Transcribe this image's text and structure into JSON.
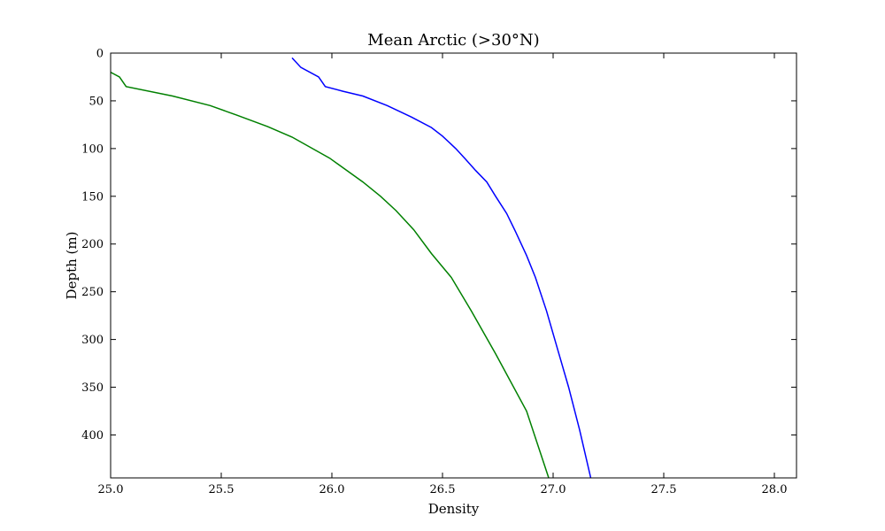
{
  "chart_data": {
    "type": "line",
    "title": "Mean Arctic (>30°N)",
    "xlabel": "Density",
    "ylabel": "Depth (m)",
    "xlim": [
      25.0,
      28.1
    ],
    "ylim": [
      445,
      0
    ],
    "y_inverted": true,
    "xticks": [
      "25.0",
      "25.5",
      "26.0",
      "26.5",
      "27.0",
      "27.5",
      "28.0"
    ],
    "yticks": [
      "0",
      "50",
      "100",
      "150",
      "200",
      "250",
      "300",
      "350",
      "400"
    ],
    "grid": false,
    "legend": "none",
    "series": [
      {
        "color": "#0000ff",
        "x": [
          25.82,
          25.86,
          25.94,
          25.97,
          26.05,
          26.14,
          26.25,
          26.36,
          26.45,
          26.5,
          26.56,
          26.6,
          26.65,
          26.7,
          26.74,
          26.79,
          26.83,
          26.88,
          26.92,
          26.97,
          27.02,
          27.07,
          27.12,
          27.17
        ],
        "y": [
          5,
          15,
          25,
          35,
          40,
          45,
          55,
          67,
          78,
          87,
          100,
          110,
          123,
          135,
          150,
          168,
          187,
          212,
          235,
          270,
          310,
          350,
          395,
          445
        ]
      },
      {
        "color": "#008000",
        "x": [
          25.0,
          25.04,
          25.07,
          25.28,
          25.45,
          25.57,
          25.71,
          25.82,
          25.99,
          26.14,
          26.22,
          26.29,
          26.37,
          26.45,
          26.54,
          26.63,
          26.74,
          26.88,
          26.98
        ],
        "y": [
          20,
          25,
          35,
          45,
          55,
          65,
          77,
          88,
          110,
          135,
          150,
          165,
          185,
          210,
          235,
          270,
          315,
          375,
          445
        ]
      }
    ]
  }
}
